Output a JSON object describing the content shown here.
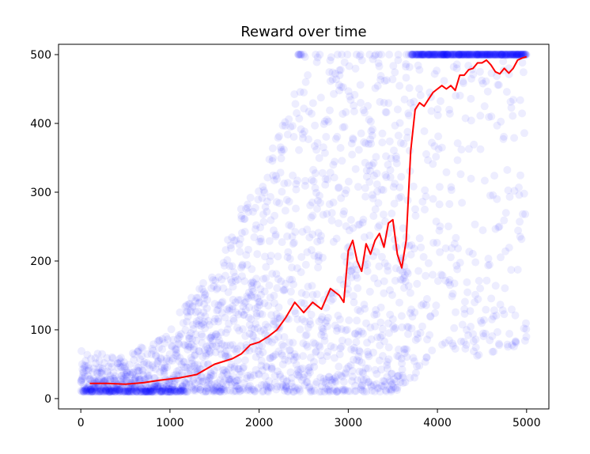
{
  "chart_data": {
    "type": "scatter",
    "title": "Reward over time",
    "xlabel": "",
    "ylabel": "",
    "xlim": [
      -250,
      5250
    ],
    "ylim": [
      -15,
      515
    ],
    "x_ticks": [
      0,
      1000,
      2000,
      3000,
      4000,
      5000
    ],
    "y_ticks": [
      0,
      100,
      200,
      300,
      400,
      500
    ],
    "grid": false,
    "legend": "none",
    "series": [
      {
        "kind": "scatter",
        "color": "#0000ff",
        "alpha": 0.07,
        "description_points": "one reward value per episode, episodes 1-5000",
        "envelope": [
          {
            "x": 0,
            "low": 10,
            "high": 70
          },
          {
            "x": 500,
            "low": 10,
            "high": 60
          },
          {
            "x": 1000,
            "low": 10,
            "high": 105
          },
          {
            "x": 1500,
            "low": 10,
            "high": 200
          },
          {
            "x": 2000,
            "low": 10,
            "high": 330
          },
          {
            "x": 2500,
            "low": 10,
            "high": 500
          },
          {
            "x": 3000,
            "low": 10,
            "high": 500
          },
          {
            "x": 3500,
            "low": 10,
            "high": 500
          },
          {
            "x": 3700,
            "low": 20,
            "high": 500
          },
          {
            "x": 4000,
            "low": 80,
            "high": 500
          },
          {
            "x": 4500,
            "low": 60,
            "high": 500
          },
          {
            "x": 5000,
            "low": 80,
            "high": 500
          }
        ]
      },
      {
        "kind": "line",
        "color": "#ff0000",
        "x": [
          100,
          300,
          500,
          700,
          900,
          1100,
          1300,
          1500,
          1700,
          1800,
          1900,
          2000,
          2100,
          2200,
          2300,
          2400,
          2500,
          2600,
          2700,
          2800,
          2900,
          2950,
          3000,
          3050,
          3100,
          3150,
          3200,
          3250,
          3300,
          3350,
          3400,
          3450,
          3500,
          3550,
          3600,
          3650,
          3700,
          3750,
          3800,
          3850,
          3900,
          3950,
          4000,
          4050,
          4100,
          4150,
          4200,
          4250,
          4300,
          4350,
          4400,
          4450,
          4500,
          4550,
          4600,
          4650,
          4700,
          4750,
          4800,
          4850,
          4900,
          4950,
          5000
        ],
        "y": [
          22,
          22,
          21,
          23,
          27,
          30,
          35,
          50,
          58,
          65,
          78,
          82,
          90,
          100,
          118,
          140,
          125,
          140,
          130,
          160,
          150,
          140,
          215,
          230,
          200,
          185,
          225,
          210,
          230,
          240,
          220,
          255,
          260,
          210,
          190,
          230,
          360,
          420,
          430,
          425,
          435,
          445,
          450,
          455,
          450,
          455,
          448,
          470,
          470,
          478,
          480,
          488,
          488,
          492,
          485,
          475,
          472,
          480,
          473,
          480,
          492,
          495,
          497
        ]
      }
    ]
  }
}
